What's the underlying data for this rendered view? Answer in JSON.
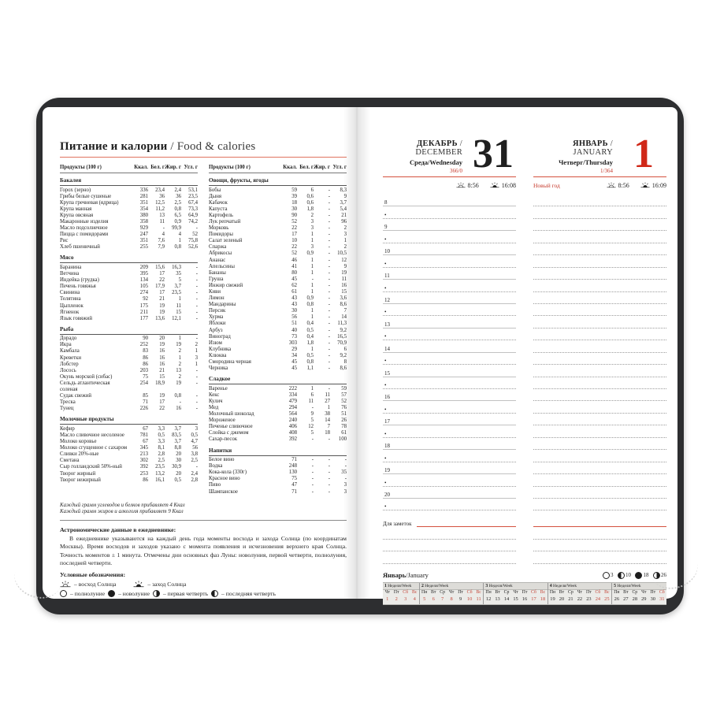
{
  "colors": {
    "accent_red": "#d02818",
    "rule_red": "#d4503e",
    "cover": "#2d2e30",
    "calendar_red": "#c5473a"
  },
  "left_page": {
    "title_ru": "Питание и калории",
    "title_en": " / Food & calories",
    "table": {
      "headers": [
        "Продукты (100 г)",
        "Ккал.",
        "Бел. г",
        "Жир. г",
        "Угл. г"
      ],
      "sections_left": [
        {
          "name": "Бакалея",
          "rows": [
            [
              "Горох (зерно)",
              "336",
              "23,4",
              "2,4",
              "53,1"
            ],
            [
              "Грибы белые сушеные",
              "281",
              "36",
              "36",
              "23,5"
            ],
            [
              "Крупа гречневая (ядрица)",
              "351",
              "12,5",
              "2,5",
              "67,4"
            ],
            [
              "Крупа манная",
              "354",
              "11,2",
              "0,8",
              "73,3"
            ],
            [
              "Крупа овсяная",
              "380",
              "13",
              "6,5",
              "64,9"
            ],
            [
              "Макаронные изделия",
              "358",
              "11",
              "0,9",
              "74,2"
            ],
            [
              "Масло подсолнечное",
              "929",
              "-",
              "99,9",
              "-"
            ],
            [
              "Пицца с помидорами",
              "247",
              "4",
              "4",
              "52"
            ],
            [
              "Рис",
              "351",
              "7,6",
              "1",
              "75,8"
            ],
            [
              "Хлеб пшеничный",
              "255",
              "7,9",
              "0,8",
              "52,6"
            ]
          ]
        },
        {
          "name": "Мясо",
          "rows": [
            [
              "Баранина",
              "209",
              "15,6",
              "16,3",
              "-"
            ],
            [
              "Ветчина",
              "395",
              "17",
              "35",
              "-"
            ],
            [
              "Индейка (грудка)",
              "134",
              "22",
              "5",
              "-"
            ],
            [
              "Печень говяжья",
              "105",
              "17,9",
              "3,7",
              "-"
            ],
            [
              "Свинина",
              "274",
              "17",
              "23,5",
              "-"
            ],
            [
              "Телятина",
              "92",
              "21",
              "1",
              "-"
            ],
            [
              "Цыпленок",
              "175",
              "19",
              "11",
              "-"
            ],
            [
              "Ягненок",
              "211",
              "19",
              "15",
              "-"
            ],
            [
              "Язык говяжий",
              "177",
              "13,6",
              "12,1",
              "-"
            ]
          ]
        },
        {
          "name": "Рыба",
          "rows": [
            [
              "Дорадо",
              "90",
              "20",
              "1",
              "-"
            ],
            [
              "Икра",
              "252",
              "19",
              "19",
              "2"
            ],
            [
              "Камбала",
              "83",
              "16",
              "2",
              "1"
            ],
            [
              "Креветки",
              "86",
              "16",
              "1",
              "3"
            ],
            [
              "Лобстер",
              "86",
              "16",
              "2",
              "1"
            ],
            [
              "Лосось",
              "203",
              "21",
              "13",
              "-"
            ],
            [
              "Окунь морской (сибас)",
              "75",
              "15",
              "2",
              "-"
            ],
            [
              "Сельдь атлантическая соленая",
              "254",
              "18,9",
              "19",
              "-"
            ],
            [
              "Судак свежий",
              "85",
              "19",
              "0,8",
              "-"
            ],
            [
              "Треска",
              "71",
              "17",
              "-",
              "-"
            ],
            [
              "Тунец",
              "226",
              "22",
              "16",
              "-"
            ]
          ]
        },
        {
          "name": "Молочные продукты",
          "rows": [
            [
              "Кефир",
              "67",
              "3,3",
              "3,7",
              "3"
            ],
            [
              "Масло сливочное несоленое",
              "781",
              "0,5",
              "83,5",
              "0,5"
            ],
            [
              "Молоко коровье",
              "67",
              "3,3",
              "3,7",
              "4,7"
            ],
            [
              "Молоко сгущенное с сахаром",
              "345",
              "8,1",
              "8,8",
              "56"
            ],
            [
              "Сливки 20%-ные",
              "213",
              "2,8",
              "20",
              "3,8"
            ],
            [
              "Сметана",
              "302",
              "2,5",
              "30",
              "2,5"
            ],
            [
              "Сыр голландский 50%-ный",
              "392",
              "23,5",
              "30,9",
              "-"
            ],
            [
              "Творог жирный",
              "253",
              "13,2",
              "20",
              "2,4"
            ],
            [
              "Творог нежирный",
              "86",
              "16,1",
              "0,5",
              "2,8"
            ]
          ]
        }
      ],
      "sections_right": [
        {
          "name": "Овощи, фрукты, ягоды",
          "rows": [
            [
              "Бобы",
              "59",
              "6",
              "-",
              "8,3"
            ],
            [
              "Дыня",
              "39",
              "0,6",
              "-",
              "9"
            ],
            [
              "Кабачок",
              "18",
              "0,6",
              "-",
              "3,7"
            ],
            [
              "Капуста",
              "30",
              "1,8",
              "-",
              "5,4"
            ],
            [
              "Картофель",
              "90",
              "2",
              "-",
              "21"
            ],
            [
              "Лук репчатый",
              "52",
              "3",
              "-",
              "96"
            ],
            [
              "Морковь",
              "22",
              "3",
              "-",
              "2"
            ],
            [
              "Помидоры",
              "17",
              "1",
              "-",
              "3"
            ],
            [
              "Салат зеленый",
              "10",
              "1",
              "-",
              "1"
            ],
            [
              "Спаржа",
              "22",
              "3",
              "-",
              "2"
            ],
            [
              "Абрикосы",
              "52",
              "0,9",
              "-",
              "10,5"
            ],
            [
              "Ананас",
              "46",
              "1",
              "-",
              "12"
            ],
            [
              "Апельсины",
              "41",
              "1",
              "-",
              "9"
            ],
            [
              "Бананы",
              "80",
              "1",
              "-",
              "19"
            ],
            [
              "Груша",
              "45",
              "-",
              "-",
              "11"
            ],
            [
              "Инжир свежий",
              "62",
              "1",
              "-",
              "16"
            ],
            [
              "Киви",
              "61",
              "1",
              "-",
              "15"
            ],
            [
              "Лимон",
              "43",
              "0,9",
              "-",
              "3,6"
            ],
            [
              "Мандарины",
              "43",
              "0,8",
              "-",
              "8,6"
            ],
            [
              "Персик",
              "30",
              "1",
              "-",
              "7"
            ],
            [
              "Хурма",
              "56",
              "1",
              "-",
              "14"
            ],
            [
              "Яблоки",
              "51",
              "0,4",
              "-",
              "11,3"
            ],
            [
              "Арбуз",
              "40",
              "0,5",
              "-",
              "9,2"
            ],
            [
              "Виноград",
              "73",
              "0,4",
              "-",
              "16,5"
            ],
            [
              "Изюм",
              "303",
              "1,8",
              "-",
              "70,9"
            ],
            [
              "Клубника",
              "29",
              "1",
              "-",
              "6"
            ],
            [
              "Клюква",
              "34",
              "0,5",
              "-",
              "9,2"
            ],
            [
              "Смородина черная",
              "45",
              "0,8",
              "-",
              "8"
            ],
            [
              "Черника",
              "45",
              "1,1",
              "-",
              "8,6"
            ]
          ]
        },
        {
          "name": "Сладкое",
          "rows": [
            [
              "Варенье",
              "222",
              "1",
              "-",
              "59"
            ],
            [
              "Кекс",
              "334",
              "6",
              "11",
              "57"
            ],
            [
              "Кулич",
              "479",
              "11",
              "27",
              "52"
            ],
            [
              "Мед",
              "294",
              "-",
              "1",
              "76"
            ],
            [
              "Молочный шоколад",
              "564",
              "9",
              "38",
              "51"
            ],
            [
              "Мороженое",
              "240",
              "5",
              "14",
              "26"
            ],
            [
              "Печенье сливочное",
              "406",
              "12",
              "7",
              "78"
            ],
            [
              "Слойка с джемом",
              "408",
              "5",
              "18",
              "61"
            ],
            [
              "Сахар-песок",
              "392",
              "-",
              "-",
              "100"
            ]
          ]
        },
        {
          "name": "Напитки",
          "rows": [
            [
              "Белое вино",
              "71",
              "-",
              "-",
              "-"
            ],
            [
              "Водка",
              "248",
              "-",
              "-",
              "-"
            ],
            [
              "Кока-кола (330г)",
              "130",
              "-",
              "-",
              "35"
            ],
            [
              "Красное вино",
              "75",
              "-",
              "-",
              "-"
            ],
            [
              "Пиво",
              "47",
              "-",
              "-",
              "3"
            ],
            [
              "Шампанское",
              "71",
              "-",
              "-",
              "3"
            ]
          ]
        }
      ]
    },
    "notes": [
      "Каждый грамм углеводов и белков прибавляет 4 Ккал",
      "Каждый грамм жиров и алкоголя прибавляет 9 Ккал"
    ],
    "astro_heading": "Астрономические данные в ежедневнике:",
    "astro_text": "В ежедневнике указываются на каждый день года моменты восхода и захода Солнца (по координатам Москвы). Время восходов и заходов указано с момента появления и исчезновения верхнего края Солнца. Точность моментов ± 1 минута. Отмечены дни основных фаз Луны: новолуния, первой четверти, полнолуния, последней четверти.",
    "legend_heading": "Условные обозначения:",
    "legend_sun": [
      {
        "icon": "sunrise-icon",
        "text": "– восход Солнца"
      },
      {
        "icon": "sunset-icon",
        "text": "– заход Солнца"
      }
    ],
    "legend_moon": [
      {
        "icon": "full-moon-icon",
        "text": "– полнолуние"
      },
      {
        "icon": "new-moon-icon",
        "text": "– новолуние"
      },
      {
        "icon": "first-quarter-icon",
        "text": "– первая четверть"
      },
      {
        "icon": "last-quarter-icon",
        "text": "– последняя четверть"
      }
    ]
  },
  "right_page": {
    "dec": {
      "month_ru": "ДЕКАБРЬ",
      "month_en": "/ DECEMBER",
      "weekday": "Среда/Wednesday",
      "day_count": "366/0",
      "big": "31",
      "sunrise": "8:56",
      "sunset": "16:08",
      "holiday": ""
    },
    "jan": {
      "month_ru": "ЯНВАРЬ",
      "month_en": "/ JANUARY",
      "weekday": "Четверг/Thursday",
      "day_count": "1/364",
      "big": "1",
      "sunrise": "8:56",
      "sunset": "16:09",
      "holiday": "Новый год"
    },
    "hours": [
      "8",
      "9",
      "10",
      "11",
      "12",
      "13",
      "14",
      "15",
      "16",
      "17",
      "18",
      "19",
      "20"
    ],
    "half_hour_bullet": "•",
    "notes_label": "Для заметок",
    "extra_note_lines": 3,
    "month_footer": {
      "ru": "Январь",
      "en": "/January"
    },
    "moon_phases": [
      {
        "icon": "full-moon-icon",
        "day": "3"
      },
      {
        "icon": "last-quarter-icon",
        "day": "10"
      },
      {
        "icon": "new-moon-icon",
        "day": "18"
      },
      {
        "icon": "first-quarter-icon",
        "day": "26"
      }
    ],
    "calendar": {
      "weeks": [
        {
          "num": "1",
          "label": "Неделя/Week",
          "days": [
            [
              "Чт",
              0
            ],
            [
              "Пт",
              0
            ],
            [
              "Сб",
              1
            ],
            [
              "Вс",
              1
            ]
          ],
          "dates": [
            [
              "1",
              1
            ],
            [
              "2",
              1
            ],
            [
              "3",
              1
            ],
            [
              "4",
              1
            ]
          ]
        },
        {
          "num": "2",
          "label": "Неделя/Week",
          "days": [
            [
              "Пн",
              0
            ],
            [
              "Вт",
              0
            ],
            [
              "Ср",
              0
            ],
            [
              "Чт",
              0
            ],
            [
              "Пт",
              0
            ],
            [
              "Сб",
              1
            ],
            [
              "Вс",
              1
            ]
          ],
          "dates": [
            [
              "5",
              1
            ],
            [
              "6",
              1
            ],
            [
              "7",
              1
            ],
            [
              "8",
              1
            ],
            [
              "9",
              0
            ],
            [
              "10",
              1
            ],
            [
              "11",
              1
            ]
          ]
        },
        {
          "num": "3",
          "label": "Неделя/Week",
          "days": [
            [
              "Пн",
              0
            ],
            [
              "Вт",
              0
            ],
            [
              "Ср",
              0
            ],
            [
              "Чт",
              0
            ],
            [
              "Пт",
              0
            ],
            [
              "Сб",
              1
            ],
            [
              "Вс",
              1
            ]
          ],
          "dates": [
            [
              "12",
              0
            ],
            [
              "13",
              0
            ],
            [
              "14",
              0
            ],
            [
              "15",
              0
            ],
            [
              "16",
              0
            ],
            [
              "17",
              1
            ],
            [
              "18",
              1
            ]
          ]
        },
        {
          "num": "4",
          "label": "Неделя/Week",
          "days": [
            [
              "Пн",
              0
            ],
            [
              "Вт",
              0
            ],
            [
              "Ср",
              0
            ],
            [
              "Чт",
              0
            ],
            [
              "Пт",
              0
            ],
            [
              "Сб",
              1
            ],
            [
              "Вс",
              1
            ]
          ],
          "dates": [
            [
              "19",
              0
            ],
            [
              "20",
              0
            ],
            [
              "21",
              0
            ],
            [
              "22",
              0
            ],
            [
              "23",
              0
            ],
            [
              "24",
              1
            ],
            [
              "25",
              1
            ]
          ]
        },
        {
          "num": "5",
          "label": "Неделя/Week",
          "days": [
            [
              "Пн",
              0
            ],
            [
              "Вт",
              0
            ],
            [
              "Ср",
              0
            ],
            [
              "Чт",
              0
            ],
            [
              "Пт",
              0
            ],
            [
              "Сб",
              1
            ]
          ],
          "dates": [
            [
              "26",
              0
            ],
            [
              "27",
              0
            ],
            [
              "28",
              0
            ],
            [
              "29",
              0
            ],
            [
              "30",
              0
            ],
            [
              "31",
              1
            ]
          ]
        }
      ]
    }
  }
}
